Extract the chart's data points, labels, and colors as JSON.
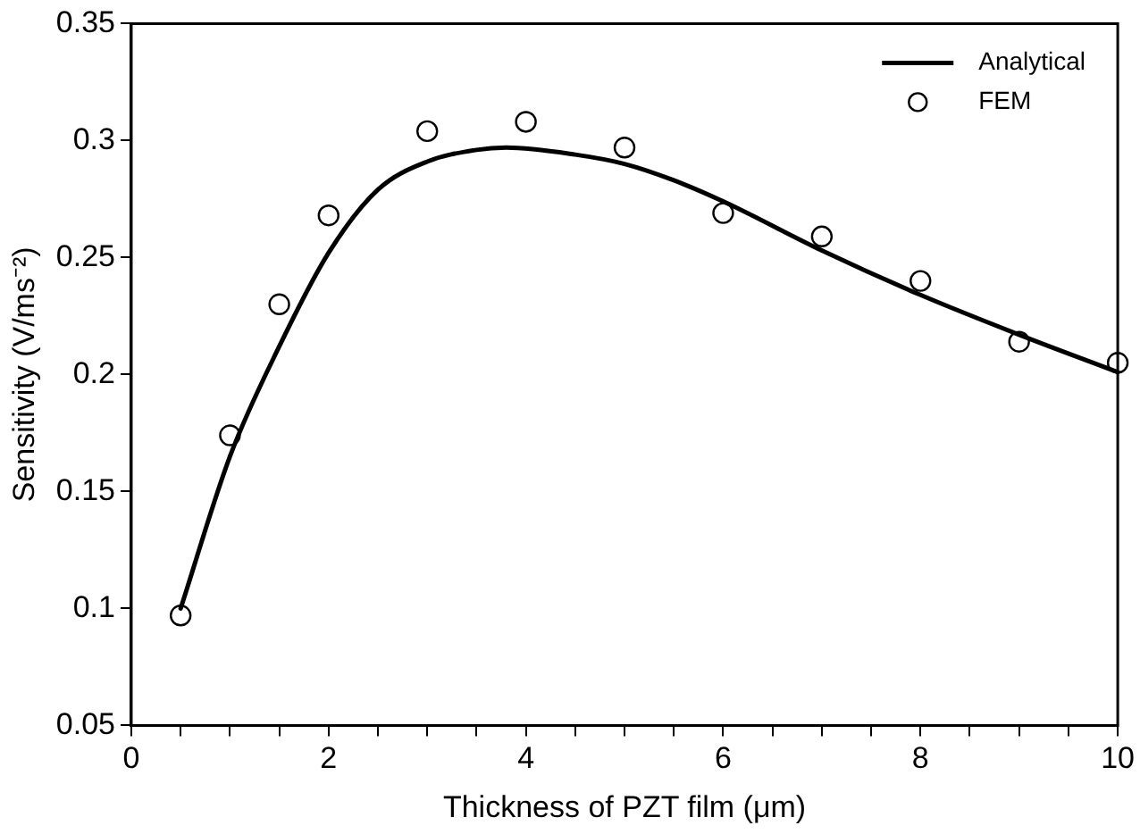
{
  "chart_data": {
    "type": "line",
    "xlabel": "Thickness of PZT film (μm)",
    "ylabel": "Sensitivity (V/ms⁻²)",
    "xlim": [
      0,
      10
    ],
    "xticks": [
      0,
      {
        "value": 0.5,
        "label": null
      },
      {
        "value": 1,
        "label": null
      },
      {
        "value": 1.5,
        "label": null
      },
      2,
      {
        "value": 2.5,
        "label": null
      },
      {
        "value": 3,
        "label": null
      },
      {
        "value": 3.5,
        "label": null
      },
      4,
      {
        "value": 4.5,
        "label": null
      },
      {
        "value": 5,
        "label": null
      },
      {
        "value": 5.5,
        "label": null
      },
      6,
      {
        "value": 6.5,
        "label": null
      },
      {
        "value": 7,
        "label": null
      },
      {
        "value": 7.5,
        "label": null
      },
      8,
      {
        "value": 8.5,
        "label": null
      },
      {
        "value": 9,
        "label": null
      },
      {
        "value": 9.5,
        "label": null
      },
      10
    ],
    "ylim": [
      0.05,
      0.35
    ],
    "yticks": [
      0.05,
      0.1,
      0.15,
      0.2,
      0.25,
      0.3,
      0.35
    ],
    "grid": false,
    "legend": "top right",
    "series": [
      {
        "name": "Analytical",
        "color": "#000000",
        "marker": "none",
        "line_style": "solid",
        "x": [
          0.5,
          1,
          1.5,
          2,
          2.5,
          3,
          3.5,
          3.8,
          4.5,
          5,
          5.5,
          6,
          7,
          8,
          9,
          10
        ],
        "values": [
          0.1,
          0.165,
          0.212,
          0.252,
          0.279,
          0.291,
          0.296,
          0.297,
          0.294,
          0.29,
          0.283,
          0.274,
          0.253,
          0.234,
          0.217,
          0.201
        ]
      },
      {
        "name": "FEM",
        "type": "scatter",
        "color": "#000000",
        "marker": "circle",
        "x": [
          0.5,
          1,
          1.5,
          2,
          3,
          4,
          5,
          6,
          7,
          8,
          9,
          10
        ],
        "values": [
          0.097,
          0.174,
          0.23,
          0.268,
          0.304,
          0.308,
          0.297,
          0.269,
          0.259,
          0.24,
          0.214,
          0.205
        ]
      }
    ]
  }
}
